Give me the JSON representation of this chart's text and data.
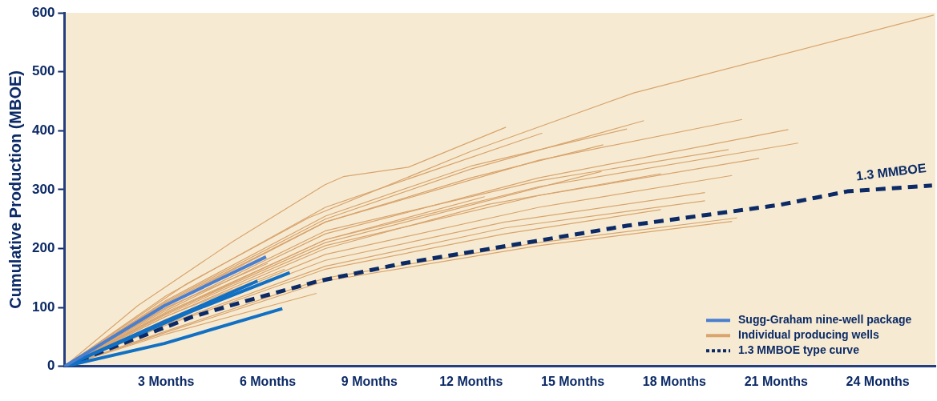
{
  "chart_data": {
    "type": "line",
    "ylabel": "Cumulative Production (MBOE)",
    "xlim": [
      0,
      25.7
    ],
    "xticks": [
      {
        "value": 3,
        "label": "3 Months"
      },
      {
        "value": 6,
        "label": "6 Months"
      },
      {
        "value": 9,
        "label": "9 Months"
      },
      {
        "value": 12,
        "label": "12 Months"
      },
      {
        "value": 15,
        "label": "15 Months"
      },
      {
        "value": 18,
        "label": "18 Months"
      },
      {
        "value": 21,
        "label": "21 Months"
      },
      {
        "value": 24,
        "label": "24 Months"
      }
    ],
    "ylim": [
      0,
      600
    ],
    "yticks": [
      0,
      100,
      200,
      300,
      400,
      500,
      600
    ],
    "grid": false,
    "legend": "bottom right",
    "marker": "none",
    "annotations": [
      "1.3 MMBOE"
    ],
    "series": [
      {
        "name": "Sugg-Graham nine-well package",
        "color": "#4a7fd0",
        "x": [
          0,
          2.95,
          5.95
        ],
        "values": [
          0,
          103,
          186
        ]
      },
      {
        "color": "#1170c4",
        "x": [
          0,
          3.77,
          6.65
        ],
        "values": [
          0,
          94,
          159
        ]
      },
      {
        "color": "#1170c4",
        "x": [
          0,
          2.95,
          5.7
        ],
        "values": [
          0,
          76,
          145
        ]
      },
      {
        "color": "#1170c4",
        "x": [
          0,
          2.95,
          6.43
        ],
        "values": [
          0,
          39,
          98
        ]
      },
      {
        "name": "Individual producing wells",
        "color": "#d9a46e",
        "x": [
          0,
          3.6,
          7.2,
          12,
          16.8,
          25.65
        ],
        "values": [
          0,
          140,
          252,
          365,
          464,
          596
        ]
      },
      {
        "color": "#d9a46e",
        "x": [
          0,
          2.16,
          4.97,
          7.68,
          8.23,
          10.15,
          13.03
        ],
        "values": [
          0,
          103,
          212,
          308,
          322,
          338,
          406
        ]
      },
      {
        "color": "#d9a46e",
        "x": [
          0,
          3,
          7.7,
          12,
          17.1
        ],
        "values": [
          0,
          110,
          250,
          335,
          417
        ]
      },
      {
        "color": "#d9a46e",
        "x": [
          0,
          3,
          7.7,
          14,
          20
        ],
        "values": [
          0,
          105,
          245,
          350,
          419
        ]
      },
      {
        "color": "#d9a46e",
        "x": [
          0,
          3,
          7.7,
          14,
          21.36
        ],
        "values": [
          0,
          95,
          225,
          320,
          402
        ]
      },
      {
        "color": "#d9a46e",
        "x": [
          0,
          3,
          7.7,
          14,
          21.65
        ],
        "values": [
          0,
          90,
          215,
          305,
          379
        ]
      },
      {
        "color": "#d9a46e",
        "x": [
          0,
          3,
          7.7,
          14,
          19.6
        ],
        "values": [
          0,
          98,
          230,
          315,
          368
        ]
      },
      {
        "color": "#d9a46e",
        "x": [
          0,
          3,
          7.7,
          14,
          20.5
        ],
        "values": [
          0,
          88,
          205,
          290,
          353
        ]
      },
      {
        "color": "#d9a46e",
        "x": [
          0,
          3,
          7.7,
          12.5,
          17.6
        ],
        "values": [
          0,
          85,
          200,
          275,
          327
        ]
      },
      {
        "color": "#d9a46e",
        "x": [
          0,
          3,
          7.7,
          14,
          19.7
        ],
        "values": [
          0,
          80,
          190,
          270,
          324
        ]
      },
      {
        "color": "#d9a46e",
        "x": [
          0,
          3,
          7.7,
          13,
          18.9
        ],
        "values": [
          0,
          78,
          180,
          245,
          295
        ]
      },
      {
        "color": "#d9a46e",
        "x": [
          0,
          3,
          7.7,
          13,
          18.9
        ],
        "values": [
          0,
          72,
          170,
          235,
          281
        ]
      },
      {
        "color": "#d9a46e",
        "x": [
          0,
          3,
          7.7,
          13,
          17.6
        ],
        "values": [
          0,
          70,
          165,
          225,
          266
        ]
      },
      {
        "color": "#d9a46e",
        "x": [
          0,
          3,
          7.7,
          14,
          19.85
        ],
        "values": [
          0,
          60,
          150,
          210,
          252
        ]
      },
      {
        "color": "#d9a46e",
        "x": [
          0,
          3,
          7.7,
          14,
          19.7
        ],
        "values": [
          0,
          58,
          145,
          205,
          246
        ]
      },
      {
        "color": "#d9a46e",
        "x": [
          0,
          3,
          7.7,
          14.1
        ],
        "values": [
          0,
          120,
          270,
          396
        ]
      },
      {
        "color": "#d9a46e",
        "x": [
          0,
          3,
          7.7,
          12,
          15.9
        ],
        "values": [
          0,
          108,
          245,
          320,
          376
        ]
      },
      {
        "color": "#d9a46e",
        "x": [
          0,
          3,
          7.7,
          15.85
        ],
        "values": [
          0,
          90,
          210,
          331
        ]
      },
      {
        "color": "#d9a46e",
        "x": [
          0,
          3,
          7.7,
          12,
          16.6
        ],
        "values": [
          0,
          112,
          255,
          340,
          403
        ]
      },
      {
        "color": "#d9a46e",
        "x": [
          0,
          3,
          7.7,
          12.4
        ],
        "values": [
          0,
          92,
          215,
          288
        ]
      },
      {
        "color": "#d9a46e",
        "x": [
          0,
          3,
          7.44
        ],
        "values": [
          0,
          55,
          124
        ]
      },
      {
        "color": "#d9a46e",
        "x": [
          0,
          3,
          6
        ],
        "values": [
          0,
          100,
          175
        ]
      },
      {
        "color": "#d9a46e",
        "x": [
          0,
          3,
          6.5
        ],
        "values": [
          0,
          85,
          165
        ]
      },
      {
        "name": "1.3 MMBOE type curve",
        "color": "#0c2a66",
        "line_style": "dashed",
        "x": [
          0,
          0.96,
          3.77,
          5.35,
          7.44,
          10,
          16.63,
          21.1,
          23.1,
          25.6
        ],
        "values": [
          0,
          22,
          84,
          111,
          144,
          175,
          239,
          274,
          297,
          307
        ]
      }
    ]
  }
}
